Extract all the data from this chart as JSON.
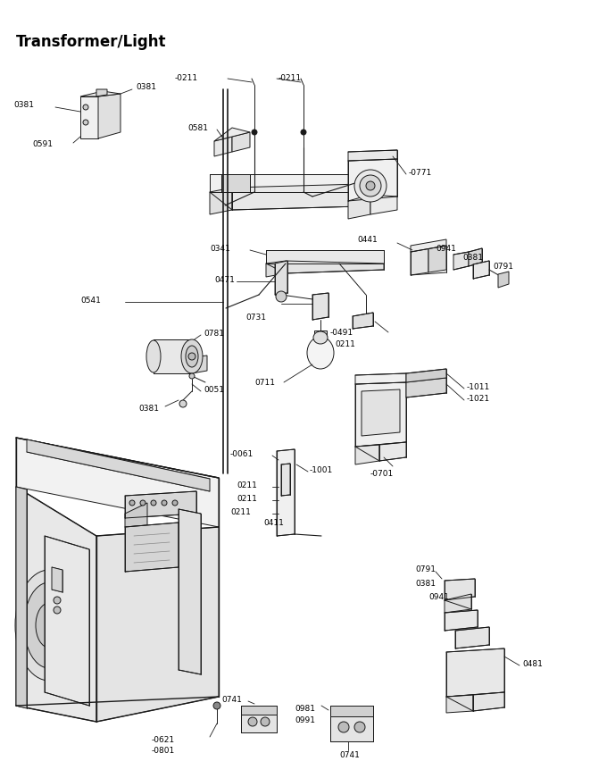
{
  "title": "Transformer/Light",
  "background_color": "#ffffff",
  "figsize": [
    6.8,
    8.71
  ],
  "dpi": 100,
  "line_color": "#1a1a1a",
  "text_color": "#000000",
  "title_fontsize": 11,
  "label_fontsize": 6.0
}
